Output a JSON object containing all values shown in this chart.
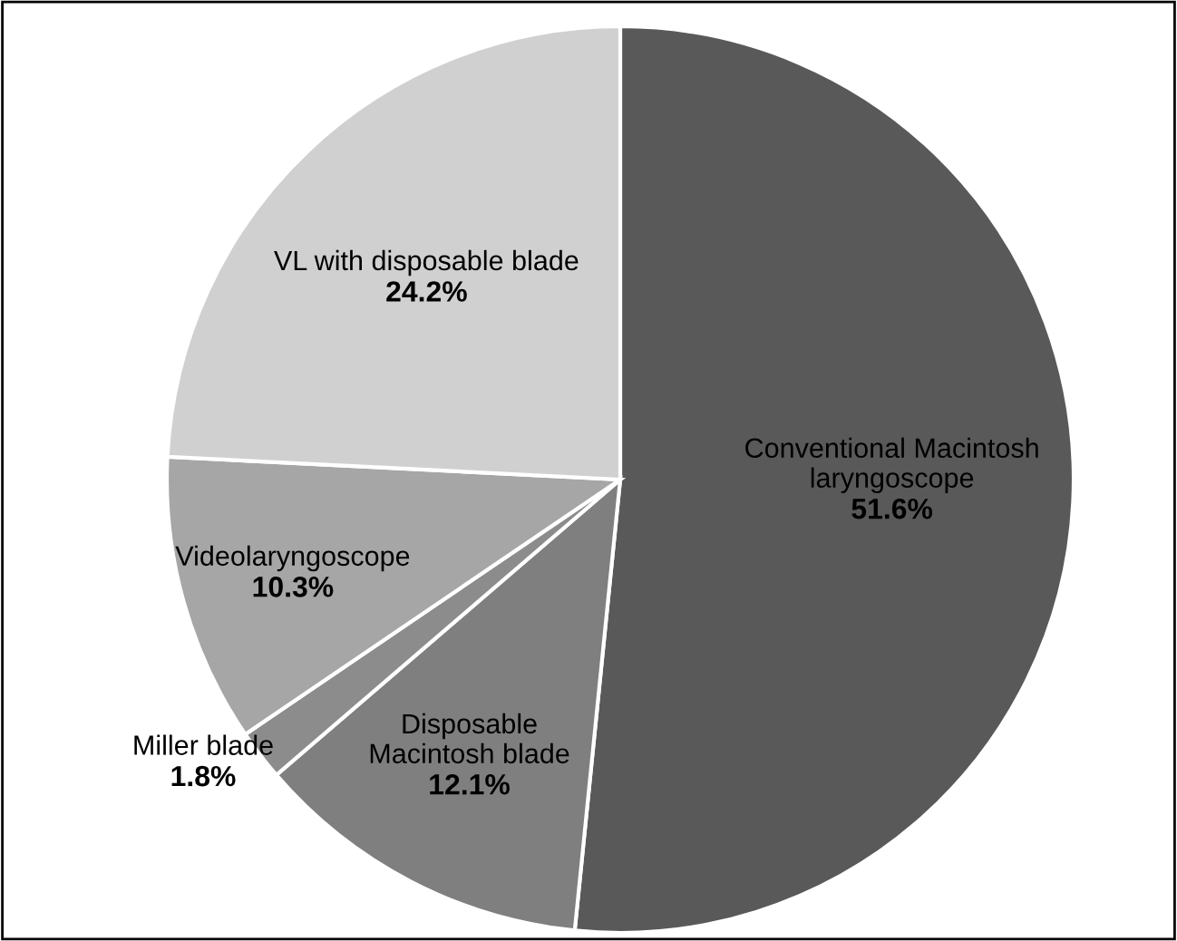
{
  "chart_data": {
    "type": "pie",
    "categories": [
      "Conventional Macintosh\nlaryngoscope",
      "Disposable\nMacintosh blade",
      "Miller blade",
      "Videolaryngoscope",
      "VL with disposable blade"
    ],
    "values": [
      51.6,
      12.1,
      1.8,
      10.3,
      24.2
    ],
    "value_labels": [
      "51.6%",
      "12.1%",
      "1.8%",
      "10.3%",
      "24.2%"
    ],
    "colors": [
      "#595959",
      "#7f7f7f",
      "#8c8c8c",
      "#a6a6a6",
      "#d0d0d0"
    ],
    "legend": false
  }
}
